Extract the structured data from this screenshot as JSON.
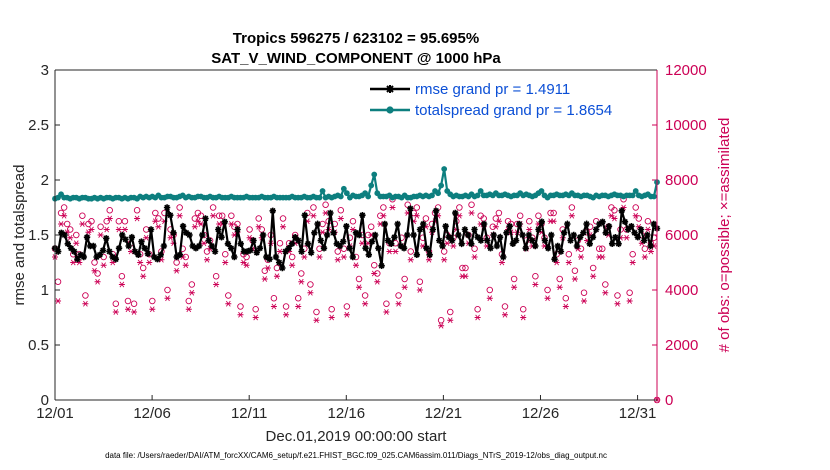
{
  "chart_data": {
    "type": "line",
    "title_line1": "Tropics 596275 / 623102 = 95.695%",
    "title_line2": "SAT_V_WIND_COMPONENT @ 1000 hPa",
    "xlabel": "Dec.01,2019 00:00:00 start",
    "ylabel_left": "rmse and totalspread",
    "ylabel_right": "# of obs: o=possible; ×=assimilated",
    "xlim": [
      0,
      31
    ],
    "ylim_left": [
      0,
      3
    ],
    "ylim_right": [
      0,
      12000
    ],
    "x_ticks": [
      {
        "value": 0,
        "label": "12/01"
      },
      {
        "value": 5,
        "label": "12/06"
      },
      {
        "value": 10,
        "label": "12/11"
      },
      {
        "value": 15,
        "label": "12/16"
      },
      {
        "value": 20,
        "label": "12/21"
      },
      {
        "value": 25,
        "label": "12/26"
      },
      {
        "value": 30,
        "label": "12/31"
      }
    ],
    "y_ticks_left": [
      "0",
      "0.5",
      "1",
      "1.5",
      "2",
      "2.5",
      "3"
    ],
    "y_ticks_right": [
      "0",
      "2000",
      "4000",
      "6000",
      "8000",
      "10000",
      "12000"
    ],
    "colors": {
      "rmse": "#000000",
      "spread": "#0d7f7f",
      "obs": "#cc0055",
      "legend_text": "#0b4fd6"
    },
    "series": [
      {
        "name": "rmse",
        "legend": "rmse grand pr = 1.4911",
        "values": [
          1.38,
          1.35,
          1.52,
          1.5,
          1.42,
          1.38,
          1.35,
          1.28,
          1.32,
          1.3,
          1.48,
          1.4,
          1.4,
          1.3,
          1.32,
          1.36,
          1.47,
          1.35,
          1.3,
          1.28,
          1.38,
          1.5,
          1.46,
          1.4,
          1.48,
          1.35,
          1.32,
          1.44,
          1.38,
          1.33,
          1.55,
          1.3,
          1.28,
          1.32,
          1.4,
          1.75,
          1.68,
          1.52,
          1.3,
          1.32,
          1.58,
          1.52,
          1.5,
          1.4,
          1.38,
          1.4,
          1.5,
          1.65,
          1.45,
          1.4,
          1.35,
          1.55,
          1.48,
          1.62,
          1.42,
          1.38,
          1.3,
          1.55,
          1.42,
          1.35,
          1.35,
          1.36,
          1.45,
          1.34,
          1.38,
          1.5,
          1.3,
          1.28,
          1.72,
          1.3,
          1.25,
          1.2,
          1.35,
          1.38,
          1.42,
          1.48,
          1.45,
          1.35,
          1.68,
          1.42,
          1.34,
          1.52,
          1.6,
          1.45,
          1.38,
          1.5,
          1.7,
          1.52,
          1.42,
          1.4,
          1.44,
          1.58,
          1.38,
          1.3,
          1.52,
          1.5,
          1.68,
          1.38,
          1.32,
          1.44,
          1.5,
          1.38,
          1.22,
          1.6,
          1.45,
          1.42,
          1.48,
          1.6,
          1.4,
          1.38,
          1.5,
          1.74,
          1.5,
          1.32,
          1.55,
          1.6,
          1.38,
          1.32,
          1.55,
          1.72,
          1.45,
          1.4,
          1.58,
          1.48,
          1.45,
          1.7,
          1.5,
          1.42,
          1.55,
          1.5,
          1.42,
          1.55,
          1.48,
          1.45,
          1.6,
          1.45,
          1.38,
          1.5,
          1.4,
          1.48,
          1.3,
          1.52,
          1.58,
          1.42,
          1.45,
          1.6,
          1.5,
          1.38,
          1.5,
          1.45,
          1.4,
          1.55,
          1.62,
          1.45,
          1.38,
          1.5,
          1.28,
          1.4,
          1.35,
          1.52,
          1.6,
          1.45,
          1.5,
          1.4,
          1.48,
          1.52,
          1.6,
          1.42,
          1.48,
          1.55,
          1.6,
          1.62,
          1.52,
          1.58,
          1.42,
          1.48,
          1.42,
          1.72,
          1.62,
          1.55,
          1.58,
          1.52,
          1.48,
          1.55,
          1.45,
          1.5,
          1.4,
          1.6,
          1.56
        ]
      },
      {
        "name": "totalspread",
        "legend": "totalspread grand pr = 1.8654",
        "values": [
          1.83,
          1.84,
          1.87,
          1.84,
          1.84,
          1.83,
          1.84,
          1.84,
          1.83,
          1.84,
          1.84,
          1.83,
          1.83,
          1.84,
          1.83,
          1.84,
          1.83,
          1.84,
          1.84,
          1.83,
          1.84,
          1.84,
          1.83,
          1.84,
          1.83,
          1.84,
          1.84,
          1.83,
          1.85,
          1.84,
          1.85,
          1.84,
          1.85,
          1.84,
          1.86,
          1.84,
          1.84,
          1.85,
          1.85,
          1.84,
          1.84,
          1.85,
          1.86,
          1.84,
          1.85,
          1.84,
          1.84,
          1.85,
          1.85,
          1.84,
          1.84,
          1.85,
          1.84,
          1.84,
          1.85,
          1.84,
          1.84,
          1.84,
          1.85,
          1.84,
          1.84,
          1.84,
          1.84,
          1.85,
          1.84,
          1.84,
          1.84,
          1.84,
          1.85,
          1.84,
          1.84,
          1.84,
          1.85,
          1.84,
          1.84,
          1.84,
          1.84,
          1.84,
          1.85,
          1.84,
          1.84,
          1.84,
          1.85,
          1.84,
          1.84,
          1.85,
          1.84,
          1.84,
          1.9,
          1.84,
          1.85,
          1.84,
          1.85,
          1.86,
          1.85,
          1.92,
          1.88,
          1.84,
          1.86,
          1.85,
          1.85,
          1.86,
          1.88,
          1.85,
          1.95,
          2.05,
          1.88,
          1.85,
          1.85,
          1.85,
          1.86,
          1.84,
          1.85,
          1.85,
          1.84,
          1.86,
          1.84,
          1.84,
          1.85,
          1.85,
          1.86,
          1.85,
          1.86,
          1.85,
          1.86,
          1.9,
          1.88,
          1.95,
          2.1,
          1.9,
          1.87,
          1.85,
          1.86,
          1.85,
          1.85,
          1.86,
          1.85,
          1.87,
          1.85,
          1.86,
          1.9,
          1.86,
          1.86,
          1.87,
          1.86,
          1.88,
          1.86,
          1.86,
          1.87,
          1.86,
          1.85,
          1.86,
          1.86,
          1.88,
          1.86,
          1.87,
          1.86,
          1.85,
          1.86,
          1.88,
          1.9,
          1.86,
          1.84,
          1.86,
          1.86,
          1.87,
          1.86,
          1.86,
          1.87,
          1.86,
          1.88,
          1.86,
          1.86,
          1.85,
          1.86,
          1.86,
          1.85,
          1.84,
          1.86,
          1.85,
          1.86,
          1.86,
          1.85,
          1.86,
          1.87,
          1.86,
          1.86,
          1.85,
          1.86,
          1.86,
          1.86,
          1.9,
          1.86,
          1.85,
          1.86,
          1.87,
          1.85,
          1.85,
          1.98
        ]
      },
      {
        "name": "possible",
        "legend": "",
        "values": [
          5500,
          4300,
          6800,
          7000,
          6400,
          6200,
          5300,
          6000,
          5300,
          6700,
          3800,
          6400,
          6500,
          5000,
          4600,
          6300,
          5200,
          6500,
          6900,
          5300,
          3500,
          6500,
          4500,
          6500,
          3600,
          5700,
          3500,
          6900,
          5300,
          4800,
          6200,
          5300,
          3600,
          6800,
          6600,
          5400,
          6800,
          4000,
          6200,
          6000,
          5000,
          7000,
          5500,
          5200,
          3600,
          4200,
          6600,
          6800,
          6700,
          6000,
          5400,
          5800,
          7000,
          4500,
          6700,
          6700,
          5300,
          3800,
          6700,
          6300,
          6400,
          3400,
          5300,
          5200,
          6200,
          5800,
          3300,
          6600,
          6200,
          4700,
          5100,
          6000,
          3700,
          4800,
          5700,
          6600,
          3400,
          5700,
          5200,
          6000,
          3700,
          4600,
          5500,
          6800,
          4200,
          7000,
          3200,
          5500,
          6400,
          7100,
          6500,
          3300,
          6400,
          5400,
          6900,
          5500,
          3400,
          5900,
          6500,
          5200,
          4400,
          6000,
          3800,
          6000,
          6300,
          4900,
          4600,
          6700,
          7000,
          3500,
          5700,
          7300,
          5700,
          3800,
          5900,
          4400,
          7100,
          5400,
          6800,
          7000,
          4300,
          5900,
          6600,
          5400,
          6400,
          6800,
          7000,
          2900,
          5400,
          6000,
          3200,
          5900,
          6500,
          7000,
          4800,
          4800,
          6000,
          7100,
          5500,
          3300,
          6700,
          6600,
          5900,
          4000,
          6300,
          6600,
          6800,
          5300,
          3400,
          6500,
          6400,
          4400,
          6400,
          6700,
          3300,
          5800,
          6500,
          5900,
          4500,
          6700,
          6400,
          5900,
          4000,
          6800,
          6800,
          5300,
          4400,
          6200,
          3700,
          5300,
          7000,
          4700,
          5800,
          5500,
          3900,
          6100,
          6300,
          4800,
          6500,
          5500,
          5500,
          4200,
          6300,
          7000,
          6900,
          3800,
          6200,
          7300,
          6200,
          3900,
          5300,
          7000,
          6600,
          6000,
          5500,
          6500,
          5700,
          5900,
          0
        ]
      },
      {
        "name": "assimilated",
        "legend": "",
        "values": [
          5200,
          3600,
          6400,
          6700,
          6100,
          5900,
          5000,
          5700,
          5000,
          6400,
          3500,
          6100,
          6200,
          4700,
          4300,
          6000,
          4900,
          6200,
          6600,
          5000,
          3200,
          6200,
          4200,
          6200,
          3300,
          5400,
          3200,
          6600,
          5000,
          4500,
          5900,
          5000,
          3300,
          6500,
          6300,
          5100,
          6500,
          3700,
          5900,
          5700,
          4700,
          6700,
          5200,
          4900,
          3300,
          3900,
          6300,
          6500,
          6400,
          5700,
          5100,
          5500,
          6700,
          4200,
          6400,
          6400,
          5000,
          3500,
          6400,
          6000,
          6100,
          3100,
          5000,
          4900,
          5900,
          5500,
          3000,
          6300,
          5900,
          4400,
          4800,
          5700,
          3400,
          4500,
          5400,
          6300,
          3100,
          5400,
          4900,
          5700,
          3400,
          4300,
          5200,
          6500,
          3900,
          6700,
          2900,
          5200,
          6100,
          6800,
          6200,
          3000,
          6100,
          5100,
          6600,
          5200,
          3100,
          5600,
          6200,
          4900,
          4100,
          5700,
          3500,
          5700,
          6000,
          4600,
          4300,
          6400,
          6700,
          3200,
          5400,
          7000,
          5400,
          3500,
          5600,
          4100,
          6800,
          5100,
          6500,
          6700,
          4000,
          5600,
          6300,
          5100,
          6100,
          6500,
          6700,
          2700,
          5100,
          5700,
          2900,
          5600,
          6200,
          6700,
          4500,
          4500,
          5700,
          6800,
          5200,
          3000,
          6400,
          6300,
          5600,
          3700,
          6000,
          6300,
          6500,
          5000,
          3100,
          6200,
          6100,
          4100,
          6100,
          6400,
          3000,
          5500,
          6200,
          5600,
          4200,
          6400,
          6100,
          5600,
          3700,
          6500,
          6500,
          5000,
          4100,
          5900,
          3400,
          5000,
          6700,
          4400,
          5500,
          5200,
          3600,
          5800,
          6000,
          4500,
          6200,
          5200,
          5200,
          3900,
          6000,
          6700,
          6600,
          3500,
          5900,
          7000,
          5900,
          3600,
          5000,
          6700,
          6300,
          5700,
          5200,
          6200,
          5400,
          5600,
          0
        ]
      }
    ]
  },
  "footer": "data file: /Users/raeder/DAI/ATM_forcXX/CAM6_setup/f.e21.FHIST_BGC.f09_025.CAM6assim.011/Diags_NTrS_2019-12/obs_diag_output.nc"
}
